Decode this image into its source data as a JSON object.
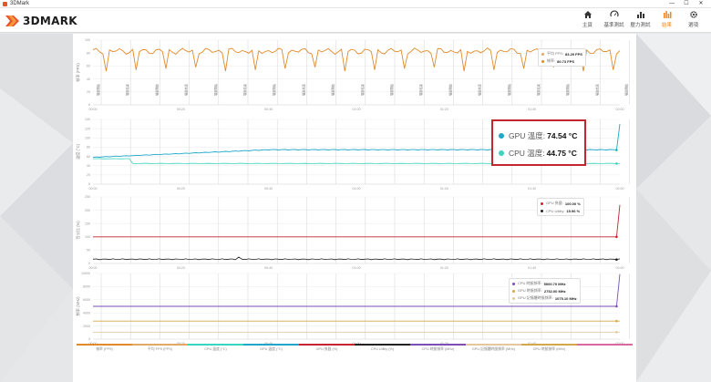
{
  "window": {
    "title": "3DMark",
    "minimize": "—",
    "maximize": "☐",
    "close": "✕"
  },
  "brand": {
    "logo_text": "3DMARK",
    "accent": "#f18a26"
  },
  "nav": [
    {
      "label": "主頁",
      "icon": "home-icon",
      "active": false
    },
    {
      "label": "基準測試",
      "icon": "benchmark-icon",
      "active": false
    },
    {
      "label": "壓力測試",
      "icon": "stress-test-icon",
      "active": false
    },
    {
      "label": "結果",
      "icon": "results-icon",
      "active": true
    },
    {
      "label": "選項",
      "icon": "settings-icon",
      "active": false
    }
  ],
  "chart_data": [
    {
      "type": "line",
      "ylabel": "幀率 (FPS)",
      "ylim": [
        0,
        100
      ],
      "yticks": [
        0,
        20,
        40,
        60,
        80,
        100
      ],
      "xticks": [
        "00:00",
        "00:20",
        "00:40",
        "01:00",
        "01:20",
        "01:40",
        "02:00"
      ],
      "markers": [
        "場景開始",
        "場景結束"
      ],
      "grid": true,
      "legend": [
        {
          "label": "平均 FPS:",
          "value": "83.29 FPS",
          "color": "#e3a867"
        },
        {
          "label": "幀率:",
          "value": "80.73 FPS",
          "color": "#e08a2a"
        }
      ],
      "series": [
        {
          "name": "幀率",
          "color": "#e08a2a",
          "baseline": 83,
          "dips": [
            52,
            54,
            56,
            58
          ]
        }
      ]
    },
    {
      "type": "line",
      "ylabel": "溫度 (°C)",
      "ylim": [
        0,
        140
      ],
      "yticks": [
        0,
        20,
        40,
        60,
        80,
        100,
        120,
        140
      ],
      "xticks": [
        "00:00",
        "00:20",
        "00:40",
        "01:00",
        "01:20",
        "01:40",
        "02:00"
      ],
      "grid": true,
      "legend": [
        {
          "label": "GPU 溫度:",
          "value": "74.54 °C",
          "color": "#1fa7c9"
        },
        {
          "label": "CPU 溫度:",
          "value": "44.75 °C",
          "color": "#3bd4c0"
        }
      ],
      "series": [
        {
          "name": "GPU 溫度",
          "color": "#1fa7c9",
          "start": 58,
          "end": 74.5,
          "spike": 130
        },
        {
          "name": "CPU 溫度",
          "color": "#3bd4c0",
          "start": 55,
          "end": 44.75
        }
      ]
    },
    {
      "type": "line",
      "ylabel": "百分比 (%)",
      "ylim": [
        0,
        250
      ],
      "yticks": [
        0,
        50,
        100,
        150,
        200,
        250
      ],
      "xticks": [
        "00:00",
        "00:20",
        "00:40",
        "01:00",
        "01:20",
        "01:40",
        "02:00"
      ],
      "grid": true,
      "legend": [
        {
          "label": "GPU 負載:",
          "value": "100.00 %",
          "color": "#c3262f"
        },
        {
          "label": "CPU Utility:",
          "value": "15.96 %",
          "color": "#222222"
        }
      ],
      "series": [
        {
          "name": "GPU 負載",
          "color": "#c3262f",
          "value": 100,
          "spike": 220
        },
        {
          "name": "CPU Utility",
          "color": "#222222",
          "value": 15.96
        }
      ]
    },
    {
      "type": "line",
      "ylabel": "頻率 (MHz)",
      "ylim": [
        0,
        10000
      ],
      "yticks": [
        0,
        2000,
        4000,
        6000,
        8000,
        10000
      ],
      "xticks": [
        "00:00",
        "00:20",
        "00:40",
        "01:00",
        "01:20",
        "01:40",
        "02:00"
      ],
      "grid": true,
      "legend": [
        {
          "label": "CPU 時脈頻率:",
          "value": "5000.70 MHz",
          "color": "#7b4fb5"
        },
        {
          "label": "GPU 時脈頻率:",
          "value": "2752.00 MHz",
          "color": "#d4a84a"
        },
        {
          "label": "GPU 記憶體時脈頻率:",
          "value": "1075.10 MHz",
          "color": "#e2c7a0"
        }
      ],
      "series": [
        {
          "name": "CPU 時脈頻率",
          "color": "#7b4fb5",
          "value": 5000.7,
          "spike": 9900
        },
        {
          "name": "GPU 時脈頻率",
          "color": "#d4a84a",
          "value": 2752
        },
        {
          "name": "GPU 記憶體時脈頻率",
          "color": "#e2c7a0",
          "value": 1075.1
        }
      ]
    }
  ],
  "highlight": [
    {
      "label": "GPU 溫度:",
      "value": "74.54 °C",
      "color": "#1fa7c9"
    },
    {
      "label": "CPU 溫度:",
      "value": "44.75 °C",
      "color": "#3bd4c0"
    }
  ],
  "bottom_legend": [
    {
      "label": "幀率 (FPS)",
      "color": "#e08a2a"
    },
    {
      "label": "平均 FPS (FPS)",
      "color": "#e3a867"
    },
    {
      "label": "CPU 溫度 (°C)",
      "color": "#3bd4c0"
    },
    {
      "label": "GPU 溫度 (°C)",
      "color": "#1fa7c9"
    },
    {
      "label": "GPU 負載 (%)",
      "color": "#c3262f"
    },
    {
      "label": "CPU Utility (%)",
      "color": "#222222"
    },
    {
      "label": "CPU 時脈頻率 (MHz)",
      "color": "#7b4fb5"
    },
    {
      "label": "GPU 記憶體時脈頻率 (MHz)",
      "color": "#e2c7a0"
    },
    {
      "label": "GPU 時脈頻率 (MHz)",
      "color": "#d4a84a"
    },
    {
      "label": "",
      "color": "#d96aa0"
    }
  ]
}
